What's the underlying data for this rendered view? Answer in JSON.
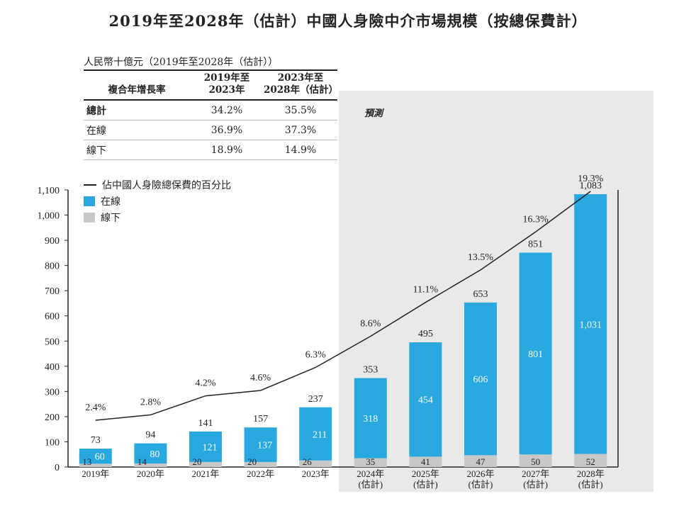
{
  "title": "2019年至2028年（估計）中國人身險中介市場規模（按總保費計）",
  "unit_label": "人民幣十億元（2019年至2028年（估計））",
  "forecast_label": "預測",
  "cagr_table": {
    "header": {
      "label": "複合年增長率",
      "col1": "2019年至\n2023年",
      "col2": "2023年至\n2028年（估計）"
    },
    "rows": [
      {
        "label": "總計",
        "v1": "34.2%",
        "v2": "35.5%"
      },
      {
        "label": "在線",
        "v1": "36.9%",
        "v2": "37.3%"
      },
      {
        "label": "線下",
        "v1": "18.9%",
        "v2": "14.9%"
      }
    ]
  },
  "legend": {
    "line": "佔中國人身險總保費的百分比",
    "online": "在線",
    "offline": "線下"
  },
  "colors": {
    "online": "#29a8e0",
    "offline": "#c8c8c8",
    "line": "#222222",
    "forecast_bg": "#e9e9e9"
  },
  "chart_data": {
    "type": "bar",
    "stacked": true,
    "categories": [
      "2019年",
      "2020年",
      "2021年",
      "2022年",
      "2023年",
      "2024年\n(估計)",
      "2025年\n(估計)",
      "2026年\n(估計)",
      "2027年\n(估計)",
      "2028年\n(估計)"
    ],
    "series": [
      {
        "name": "線下",
        "values": [
          13,
          14,
          20,
          20,
          26,
          35,
          41,
          47,
          50,
          52
        ]
      },
      {
        "name": "在線",
        "values": [
          60,
          80,
          121,
          137,
          211,
          318,
          454,
          606,
          801,
          1031
        ]
      }
    ],
    "totals": [
      73,
      94,
      141,
      157,
      237,
      353,
      495,
      653,
      851,
      1083
    ],
    "totals_labels": [
      "73",
      "94",
      "141",
      "157",
      "237",
      "353",
      "495",
      "653",
      "851",
      "1,083"
    ],
    "online_labels": [
      "60",
      "80",
      "121",
      "137",
      "211",
      "318",
      "454",
      "606",
      "801",
      "1,031"
    ],
    "offline_labels": [
      "13",
      "14",
      "20",
      "20",
      "26",
      "35",
      "41",
      "47",
      "50",
      "52"
    ],
    "line_series": {
      "name": "佔中國人身險總保費的百分比",
      "values": [
        2.4,
        2.8,
        4.2,
        4.6,
        6.3,
        8.6,
        11.1,
        13.5,
        16.3,
        19.3
      ],
      "labels": [
        "2.4%",
        "2.8%",
        "4.2%",
        "4.6%",
        "6.3%",
        "8.6%",
        "11.1%",
        "13.5%",
        "16.3%",
        "19.3%"
      ]
    },
    "yticks": [
      0,
      100,
      200,
      300,
      400,
      500,
      600,
      700,
      800,
      900,
      1000,
      1100
    ],
    "ytick_labels": [
      "0",
      "100",
      "200",
      "300",
      "400",
      "500",
      "600",
      "700",
      "800",
      "900",
      "1,000",
      "1,100"
    ],
    "ylim": [
      0,
      1100
    ],
    "forecast_start_index": 5
  }
}
